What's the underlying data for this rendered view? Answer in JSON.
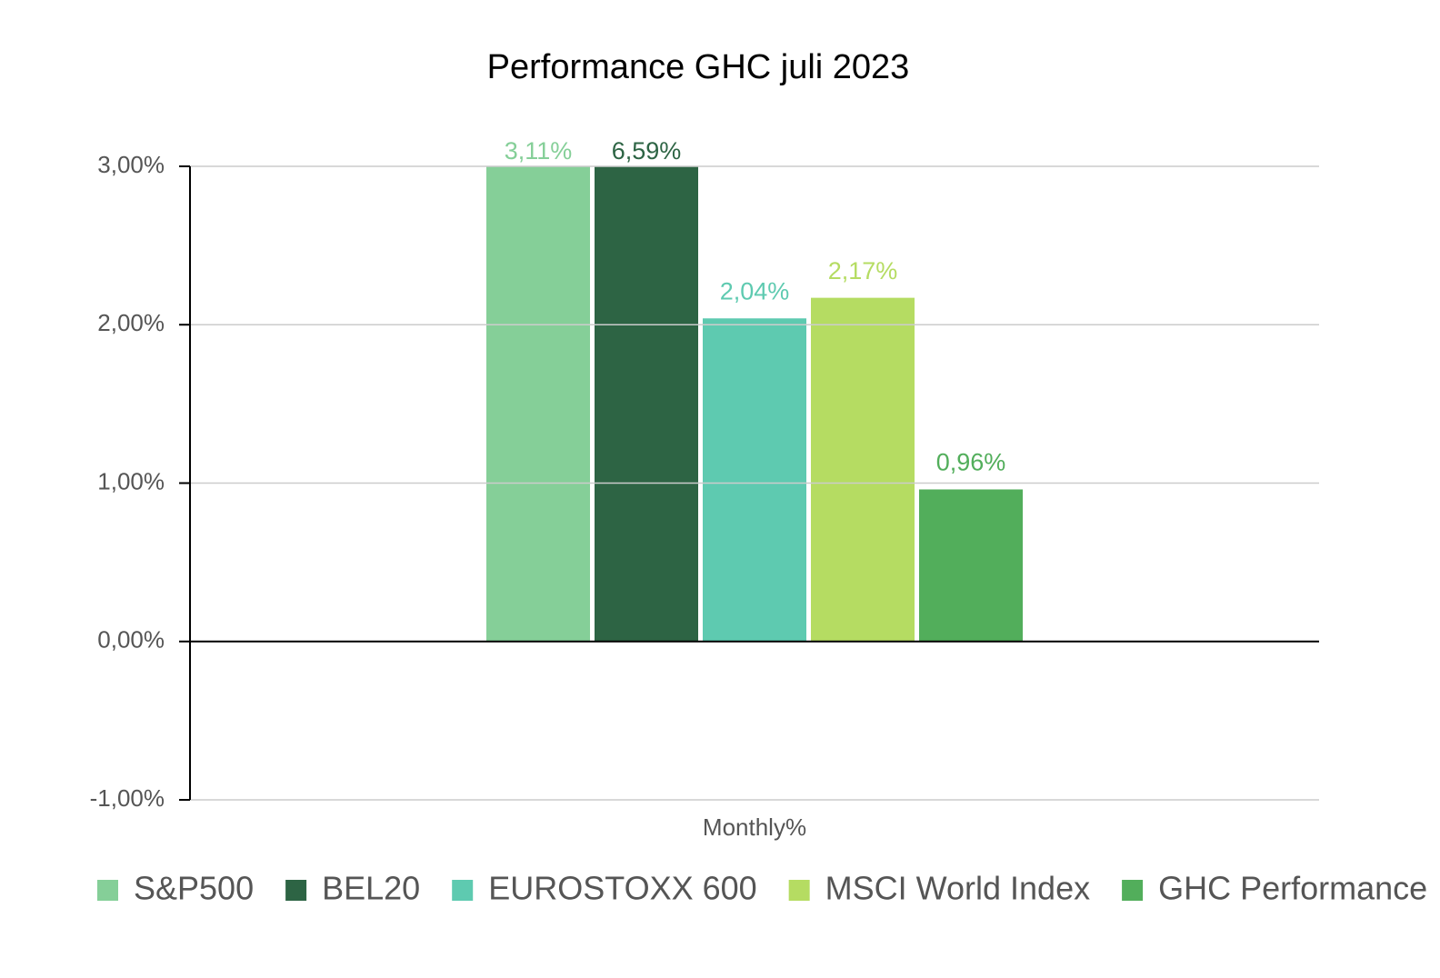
{
  "chart_data": {
    "type": "bar",
    "title": "Performance GHC juli 2023",
    "categories": [
      "Monthly%"
    ],
    "series": [
      {
        "name": "S&P500",
        "color": "#85cf98",
        "values": [
          3.11
        ],
        "value_labels": [
          "3,11%"
        ]
      },
      {
        "name": "BEL20",
        "color": "#2d6444",
        "values": [
          6.59
        ],
        "value_labels": [
          "6,59%"
        ]
      },
      {
        "name": "EUROSTOXX 600",
        "color": "#5ecab0",
        "values": [
          2.04
        ],
        "value_labels": [
          "2,04%"
        ]
      },
      {
        "name": "MSCI World Index",
        "color": "#b5dc62",
        "values": [
          2.17
        ],
        "value_labels": [
          "2,17%"
        ]
      },
      {
        "name": "GHC Performance",
        "color": "#52ae5b",
        "values": [
          0.96
        ],
        "value_labels": [
          "0,96%"
        ]
      }
    ],
    "ylim": [
      -1,
      3
    ],
    "yticks": [
      {
        "value": -1,
        "label": "-1,00%"
      },
      {
        "value": 0,
        "label": "0,00%"
      },
      {
        "value": 1,
        "label": "1,00%"
      },
      {
        "value": 2,
        "label": "2,00%"
      },
      {
        "value": 3,
        "label": "3,00%"
      }
    ],
    "grid": true,
    "legend": "bottom"
  }
}
